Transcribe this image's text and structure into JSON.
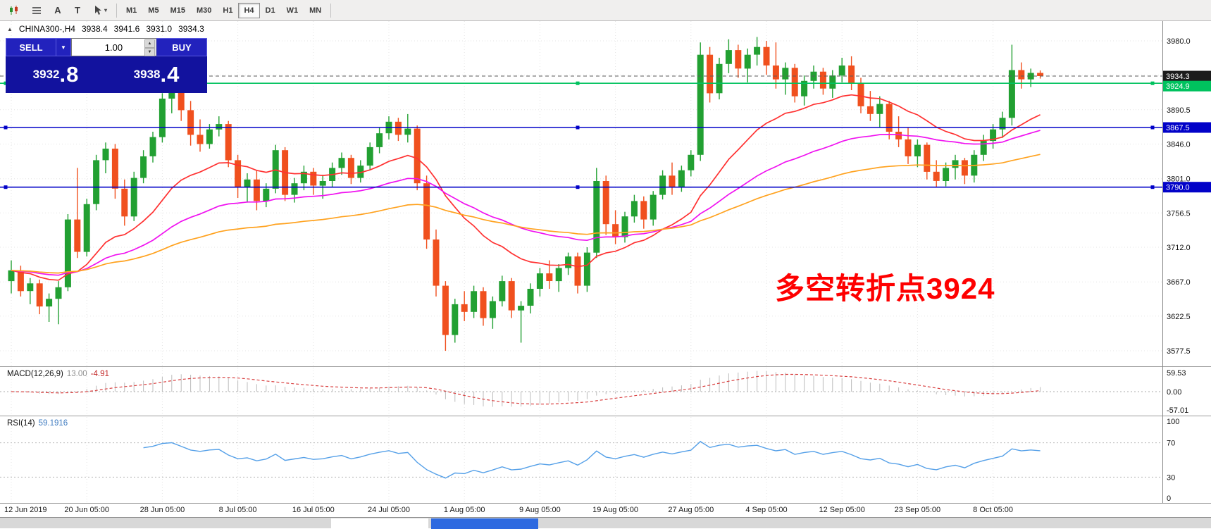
{
  "toolbar": {
    "tools": [
      {
        "name": "candlestick-chart-icon",
        "glyph": "candles"
      },
      {
        "name": "indicator-list-icon",
        "glyph": "grid"
      },
      {
        "name": "text-label-tool-icon",
        "glyph": "A"
      },
      {
        "name": "text-box-tool-icon",
        "glyph": "T"
      },
      {
        "name": "cursor-tool-icon",
        "glyph": "cursor"
      }
    ],
    "timeframes": [
      {
        "label": "M1"
      },
      {
        "label": "M5"
      },
      {
        "label": "M15"
      },
      {
        "label": "M30"
      },
      {
        "label": "H1"
      },
      {
        "label": "H4",
        "active": true
      },
      {
        "label": "D1"
      },
      {
        "label": "W1"
      },
      {
        "label": "MN"
      }
    ]
  },
  "chart_header": {
    "toggle_icon": "▲",
    "symbol_period": "CHINA300-,H4",
    "open": "3938.4",
    "high": "3941.6",
    "low": "3931.0",
    "close": "3934.3"
  },
  "trade_panel": {
    "sell_label": "SELL",
    "buy_label": "BUY",
    "caret": "▼",
    "lot_value": "1.00",
    "spin_up": "▲",
    "spin_down": "▼",
    "sell_price": {
      "main": "3932",
      "big": ".8"
    },
    "buy_price": {
      "main": "3938",
      "big": ".4"
    },
    "panel_color": "#12129e"
  },
  "annotation": {
    "text": "多空转折点3924",
    "color": "#fe0000"
  },
  "macd": {
    "label": "MACD(12,26,9)",
    "value_main": "13.00",
    "value_signal": "-4.91",
    "axis": [
      "59.53",
      "0.00",
      "-57.01"
    ]
  },
  "rsi": {
    "label": "RSI(14)",
    "value": "59.1916",
    "axis": [
      "100",
      "70",
      "30",
      "0"
    ]
  },
  "chart_data": {
    "type": "candlestick",
    "symbol": "CHINA300-",
    "timeframe": "H4",
    "current_ohlc": {
      "open": 3938.4,
      "high": 3941.6,
      "low": 3931.0,
      "close": 3934.3
    },
    "up_color": "#22a032",
    "down_color": "#f0501e",
    "ylim": [
      3560,
      3995
    ],
    "y_tick_labels": [
      "3980.0",
      "3890.5",
      "3846.0",
      "3801.0",
      "3756.5",
      "3712.0",
      "3667.0",
      "3622.5",
      "3577.5"
    ],
    "y_grid_prices": [
      3980,
      3935.5,
      3890.5,
      3846,
      3801,
      3756.5,
      3712,
      3667,
      3622.5,
      3577.5
    ],
    "x_labels": [
      "12 Jun 2019",
      "20 Jun 05:00",
      "28 Jun 05:00",
      "8 Jul 05:00",
      "16 Jul 05:00",
      "24 Jul 05:00",
      "1 Aug 05:00",
      "9 Aug 05:00",
      "19 Aug 05:00",
      "27 Aug 05:00",
      "4 Sep 05:00",
      "12 Sep 05:00",
      "23 Sep 05:00",
      "8 Oct 05:00"
    ],
    "hlines": [
      {
        "text": "3934.3",
        "price": 3934.3,
        "bg": "#1c1c1c",
        "line": "dash",
        "line_color": "#5a5a5a",
        "handles": false,
        "dy": 0
      },
      {
        "text": "3924.9",
        "price": 3924.9,
        "bg": "#00c25e",
        "line": "solid",
        "line_color": "#00c25e",
        "handles": true,
        "dy": 4
      },
      {
        "text": "3867.5",
        "price": 3867.5,
        "bg": "#0202c8",
        "line": "solid",
        "line_color": "#0202c8",
        "handles": true,
        "dy": 0
      },
      {
        "text": "3790.0",
        "price": 3790.0,
        "bg": "#0202c8",
        "line": "solid",
        "line_color": "#0202c8",
        "handles": true,
        "dy": 0
      }
    ],
    "moving_averages": [
      {
        "period": 18,
        "color": "#ff3131"
      },
      {
        "period": 42,
        "color": "#f012f0"
      },
      {
        "period": 80,
        "color": "#ffa21f"
      }
    ],
    "macd_params": {
      "fast": 12,
      "slow": 26,
      "signal": 9,
      "histogram_color": "#bcbcbc",
      "signal_color": "#d94040"
    },
    "rsi_params": {
      "period": 14,
      "color": "#55a0e8",
      "levels": [
        70,
        30
      ]
    },
    "candles": [
      [
        3668,
        3695,
        3652,
        3682
      ],
      [
        3682,
        3688,
        3648,
        3655
      ],
      [
        3655,
        3672,
        3638,
        3665
      ],
      [
        3665,
        3670,
        3625,
        3635
      ],
      [
        3635,
        3652,
        3615,
        3645
      ],
      [
        3645,
        3668,
        3612,
        3660
      ],
      [
        3660,
        3755,
        3655,
        3748
      ],
      [
        3748,
        3815,
        3698,
        3706
      ],
      [
        3706,
        3775,
        3700,
        3768
      ],
      [
        3768,
        3832,
        3760,
        3825
      ],
      [
        3825,
        3848,
        3808,
        3840
      ],
      [
        3840,
        3846,
        3775,
        3788
      ],
      [
        3788,
        3800,
        3740,
        3752
      ],
      [
        3752,
        3810,
        3746,
        3802
      ],
      [
        3802,
        3838,
        3795,
        3830
      ],
      [
        3830,
        3862,
        3822,
        3855
      ],
      [
        3855,
        3912,
        3848,
        3905
      ],
      [
        3905,
        3928,
        3886,
        3920
      ],
      [
        3920,
        3925,
        3876,
        3890
      ],
      [
        3890,
        3902,
        3844,
        3858
      ],
      [
        3858,
        3878,
        3836,
        3846
      ],
      [
        3846,
        3872,
        3840,
        3865
      ],
      [
        3865,
        3882,
        3856,
        3872
      ],
      [
        3872,
        3876,
        3816,
        3825
      ],
      [
        3825,
        3832,
        3776,
        3790
      ],
      [
        3790,
        3808,
        3770,
        3800
      ],
      [
        3800,
        3812,
        3760,
        3772
      ],
      [
        3772,
        3795,
        3764,
        3788
      ],
      [
        3788,
        3845,
        3782,
        3838
      ],
      [
        3838,
        3842,
        3772,
        3780
      ],
      [
        3780,
        3802,
        3770,
        3795
      ],
      [
        3795,
        3818,
        3786,
        3810
      ],
      [
        3810,
        3815,
        3780,
        3792
      ],
      [
        3792,
        3806,
        3775,
        3798
      ],
      [
        3798,
        3822,
        3790,
        3815
      ],
      [
        3815,
        3835,
        3806,
        3828
      ],
      [
        3828,
        3832,
        3794,
        3802
      ],
      [
        3802,
        3825,
        3796,
        3818
      ],
      [
        3818,
        3848,
        3812,
        3842
      ],
      [
        3842,
        3868,
        3834,
        3860
      ],
      [
        3860,
        3882,
        3852,
        3875
      ],
      [
        3875,
        3880,
        3850,
        3858
      ],
      [
        3858,
        3885,
        3848,
        3866
      ],
      [
        3866,
        3870,
        3786,
        3795
      ],
      [
        3795,
        3805,
        3710,
        3722
      ],
      [
        3722,
        3735,
        3648,
        3662
      ],
      [
        3662,
        3668,
        3577.5,
        3598
      ],
      [
        3598,
        3645,
        3588,
        3638
      ],
      [
        3638,
        3655,
        3616,
        3628
      ],
      [
        3628,
        3662,
        3620,
        3655
      ],
      [
        3655,
        3660,
        3610,
        3620
      ],
      [
        3620,
        3648,
        3606,
        3642
      ],
      [
        3642,
        3675,
        3635,
        3668
      ],
      [
        3668,
        3672,
        3620,
        3630
      ],
      [
        3630,
        3642,
        3588,
        3636
      ],
      [
        3636,
        3665,
        3626,
        3658
      ],
      [
        3658,
        3685,
        3648,
        3678
      ],
      [
        3678,
        3695,
        3658,
        3668
      ],
      [
        3668,
        3690,
        3654,
        3685
      ],
      [
        3685,
        3705,
        3676,
        3700
      ],
      [
        3700,
        3705,
        3652,
        3662
      ],
      [
        3662,
        3712,
        3654,
        3705
      ],
      [
        3705,
        3815,
        3698,
        3798
      ],
      [
        3798,
        3805,
        3728,
        3742
      ],
      [
        3742,
        3760,
        3716,
        3725
      ],
      [
        3725,
        3758,
        3718,
        3752
      ],
      [
        3752,
        3780,
        3744,
        3772
      ],
      [
        3772,
        3778,
        3736,
        3748
      ],
      [
        3748,
        3785,
        3740,
        3780
      ],
      [
        3780,
        3812,
        3774,
        3805
      ],
      [
        3805,
        3822,
        3780,
        3790
      ],
      [
        3790,
        3818,
        3784,
        3812
      ],
      [
        3812,
        3838,
        3804,
        3832
      ],
      [
        3832,
        3978,
        3824,
        3962
      ],
      [
        3962,
        3972,
        3900,
        3912
      ],
      [
        3912,
        3958,
        3904,
        3950
      ],
      [
        3950,
        3982,
        3938,
        3968
      ],
      [
        3968,
        3975,
        3932,
        3944
      ],
      [
        3944,
        3970,
        3926,
        3962
      ],
      [
        3962,
        3985,
        3948,
        3972
      ],
      [
        3972,
        3980,
        3936,
        3948
      ],
      [
        3948,
        3978,
        3918,
        3930
      ],
      [
        3930,
        3952,
        3910,
        3945
      ],
      [
        3945,
        3950,
        3900,
        3908
      ],
      [
        3908,
        3935,
        3896,
        3928
      ],
      [
        3928,
        3948,
        3918,
        3940
      ],
      [
        3940,
        3945,
        3910,
        3918
      ],
      [
        3918,
        3942,
        3906,
        3935
      ],
      [
        3935,
        3958,
        3926,
        3948
      ],
      [
        3948,
        3960,
        3916,
        3925
      ],
      [
        3925,
        3932,
        3886,
        3895
      ],
      [
        3895,
        3915,
        3876,
        3885
      ],
      [
        3885,
        3908,
        3868,
        3898
      ],
      [
        3898,
        3902,
        3852,
        3862
      ],
      [
        3862,
        3882,
        3842,
        3852
      ],
      [
        3852,
        3868,
        3820,
        3830
      ],
      [
        3830,
        3852,
        3816,
        3845
      ],
      [
        3845,
        3848,
        3800,
        3810
      ],
      [
        3810,
        3825,
        3790,
        3798
      ],
      [
        3798,
        3822,
        3791,
        3815
      ],
      [
        3815,
        3832,
        3800,
        3825
      ],
      [
        3825,
        3828,
        3794,
        3805
      ],
      [
        3805,
        3838,
        3796,
        3832
      ],
      [
        3832,
        3858,
        3824,
        3850
      ],
      [
        3850,
        3872,
        3840,
        3865
      ],
      [
        3865,
        3888,
        3854,
        3880
      ],
      [
        3880,
        3975,
        3870,
        3942
      ],
      [
        3942,
        3952,
        3918,
        3930
      ],
      [
        3930,
        3944,
        3920,
        3938.4
      ],
      [
        3938.4,
        3941.6,
        3931,
        3934.3
      ]
    ]
  }
}
